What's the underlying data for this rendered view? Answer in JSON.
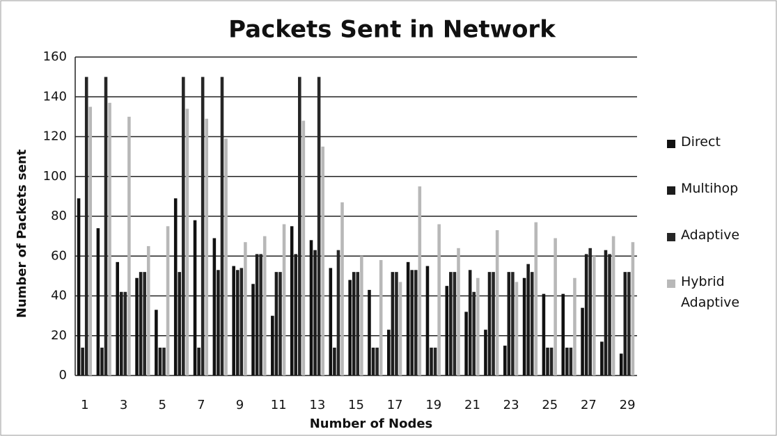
{
  "chart_data": {
    "type": "bar",
    "title": "Packets Sent in Network",
    "x_label": "Number of Nodes",
    "y_label": "Number of Packets sent",
    "categories": [
      1,
      null,
      3,
      null,
      5,
      null,
      7,
      null,
      9,
      null,
      11,
      null,
      13,
      null,
      15,
      null,
      17,
      null,
      19,
      null,
      21,
      null,
      23,
      null,
      25,
      null,
      27,
      null,
      29
    ],
    "series": [
      {
        "name": "Direct",
        "color": "#111111",
        "values": [
          89,
          74,
          57,
          49,
          33,
          89,
          78,
          69,
          55,
          46,
          30,
          75,
          68,
          54,
          48,
          43,
          23,
          57,
          55,
          45,
          32,
          23,
          15,
          49,
          41,
          41,
          34,
          17,
          11
        ]
      },
      {
        "name": "Multihop",
        "color": "#1c1c1c",
        "values": [
          14,
          14,
          42,
          52,
          14,
          52,
          14,
          53,
          53,
          61,
          52,
          61,
          63,
          14,
          52,
          14,
          52,
          53,
          14,
          52,
          53,
          52,
          52,
          56,
          14,
          14,
          61,
          63,
          52
        ]
      },
      {
        "name": "Adaptive",
        "color": "#262626",
        "values": [
          150,
          150,
          42,
          52,
          14,
          150,
          150,
          150,
          54,
          61,
          52,
          150,
          150,
          63,
          52,
          14,
          52,
          53,
          14,
          52,
          42,
          52,
          52,
          52,
          14,
          14,
          64,
          61,
          52
        ]
      },
      {
        "name": "Hybrid Adaptive",
        "color": "#b8b8b8",
        "values": [
          135,
          137,
          130,
          65,
          75,
          134,
          129,
          119,
          67,
          70,
          76,
          128,
          115,
          87,
          60,
          58,
          47,
          95,
          76,
          64,
          49,
          73,
          47,
          77,
          69,
          49,
          60,
          70,
          67
        ]
      }
    ],
    "ylim": [
      0,
      160
    ],
    "yticks": [
      0,
      20,
      40,
      60,
      80,
      100,
      120,
      140,
      160
    ],
    "grid": true,
    "legend": "right"
  }
}
